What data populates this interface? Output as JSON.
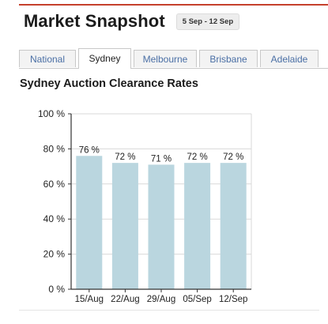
{
  "header": {
    "title": "Market Snapshot",
    "date_range": "5 Sep - 12 Sep"
  },
  "tabs": [
    {
      "label": "National"
    },
    {
      "label": "Sydney",
      "active": true
    },
    {
      "label": "Melbourne"
    },
    {
      "label": "Brisbane"
    },
    {
      "label": "Adelaide"
    }
  ],
  "section": {
    "title": "Sydney Auction Clearance Rates"
  },
  "colors": {
    "accent": "#c5412c",
    "bar": "#bad6df",
    "tab_link": "#4a6fa5"
  },
  "chart_data": {
    "type": "bar",
    "title": "Sydney Auction Clearance Rates",
    "xlabel": "",
    "ylabel": "",
    "categories": [
      "15/Aug",
      "22/Aug",
      "29/Aug",
      "05/Sep",
      "12/Sep"
    ],
    "values": [
      76,
      72,
      71,
      72,
      72
    ],
    "data_labels": [
      "76 %",
      "72 %",
      "71 %",
      "72 %",
      "72 %"
    ],
    "y_ticks": [
      0,
      20,
      40,
      60,
      80,
      100
    ],
    "y_tick_labels": [
      "0 %",
      "20 %",
      "40 %",
      "60 %",
      "80 %",
      "100 %"
    ],
    "ylim": [
      0,
      100
    ],
    "grid": true,
    "legend": "none"
  }
}
